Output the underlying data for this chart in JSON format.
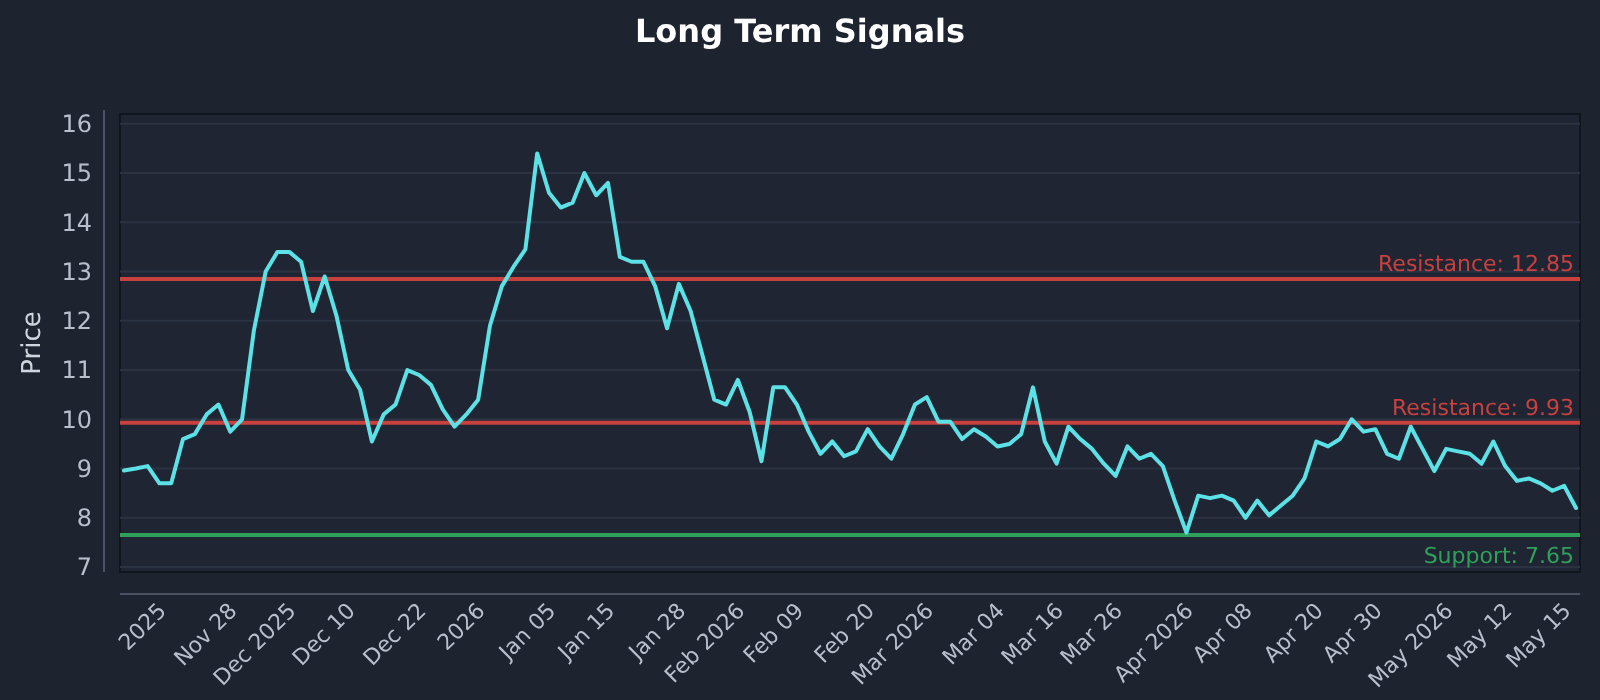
{
  "chart_data": {
    "type": "line",
    "title": "Long Term Signals",
    "ylabel": "Price",
    "categories": [
      null,
      null,
      null,
      "2025",
      null,
      null,
      null,
      null,
      null,
      "Nov 28",
      null,
      null,
      null,
      null,
      "Dec 2025",
      null,
      null,
      null,
      null,
      "Dec 10",
      null,
      null,
      null,
      null,
      null,
      "Dec 22",
      null,
      null,
      null,
      null,
      "2026",
      null,
      null,
      null,
      null,
      null,
      "Jan 05",
      null,
      null,
      null,
      null,
      "Jan 15",
      null,
      null,
      null,
      null,
      null,
      "Jan 28",
      null,
      null,
      null,
      null,
      "Feb 2026",
      null,
      null,
      null,
      null,
      "Feb 09",
      null,
      null,
      null,
      null,
      null,
      "Feb 20",
      null,
      null,
      null,
      null,
      "Mar 2026",
      null,
      null,
      null,
      null,
      null,
      "Mar 04",
      null,
      null,
      null,
      null,
      "Mar 16",
      null,
      null,
      null,
      null,
      "Mar 26",
      null,
      null,
      null,
      null,
      null,
      "Apr 2026",
      null,
      null,
      null,
      null,
      "Apr 08",
      null,
      null,
      null,
      null,
      null,
      "Apr 20",
      null,
      null,
      null,
      null,
      "Apr 30",
      null,
      null,
      null,
      null,
      null,
      "May 2026",
      null,
      null,
      null,
      null,
      "May 12",
      null,
      null,
      null,
      null,
      "May 15",
      null
    ],
    "series": [
      {
        "color": "#5ce1e6",
        "values": [
          8.96,
          9.0,
          9.05,
          8.7,
          8.7,
          9.6,
          9.7,
          10.1,
          10.3,
          9.75,
          10.0,
          11.8,
          13.0,
          13.4,
          13.4,
          13.2,
          12.2,
          12.9,
          12.1,
          11.0,
          10.6,
          9.55,
          10.1,
          10.3,
          11.0,
          10.9,
          10.7,
          10.2,
          9.85,
          10.1,
          10.4,
          11.9,
          12.7,
          13.1,
          13.45,
          15.4,
          14.6,
          14.3,
          14.4,
          15.0,
          14.55,
          14.8,
          13.3,
          13.2,
          13.2,
          12.7,
          11.85,
          12.75,
          12.2,
          11.3,
          10.4,
          10.3,
          10.8,
          10.15,
          9.15,
          10.65,
          10.65,
          10.3,
          9.75,
          9.3,
          9.55,
          9.25,
          9.35,
          9.8,
          9.45,
          9.2,
          9.7,
          10.3,
          10.45,
          9.95,
          9.95,
          9.6,
          9.8,
          9.65,
          9.45,
          9.5,
          9.7,
          10.65,
          9.55,
          9.1,
          9.85,
          9.6,
          9.4,
          9.1,
          8.85,
          9.45,
          9.2,
          9.3,
          9.05,
          8.35,
          7.7,
          8.45,
          8.4,
          8.45,
          8.35,
          8.0,
          8.35,
          8.05,
          8.25,
          8.45,
          8.8,
          9.55,
          9.45,
          9.6,
          10.0,
          9.75,
          9.8,
          9.3,
          9.2,
          9.85,
          9.4,
          8.95,
          9.4,
          9.35,
          9.3,
          9.1,
          9.55,
          9.05,
          8.75,
          8.8,
          8.7,
          8.55,
          8.65,
          8.2
        ]
      }
    ],
    "ylim": [
      6.9,
      16.2
    ],
    "yticks": [
      7,
      8,
      9,
      10,
      11,
      12,
      13,
      14,
      15,
      16
    ],
    "grid": "y",
    "ref_lines": [
      {
        "axis": "y",
        "value": 12.85,
        "label": "Resistance: 12.85",
        "color": "#c9413f"
      },
      {
        "axis": "y",
        "value": 9.93,
        "label": "Resistance: 9.93",
        "color": "#c9413f"
      },
      {
        "axis": "y",
        "value": 7.65,
        "label": "Support: 7.65",
        "color": "#2fa05a"
      }
    ]
  }
}
